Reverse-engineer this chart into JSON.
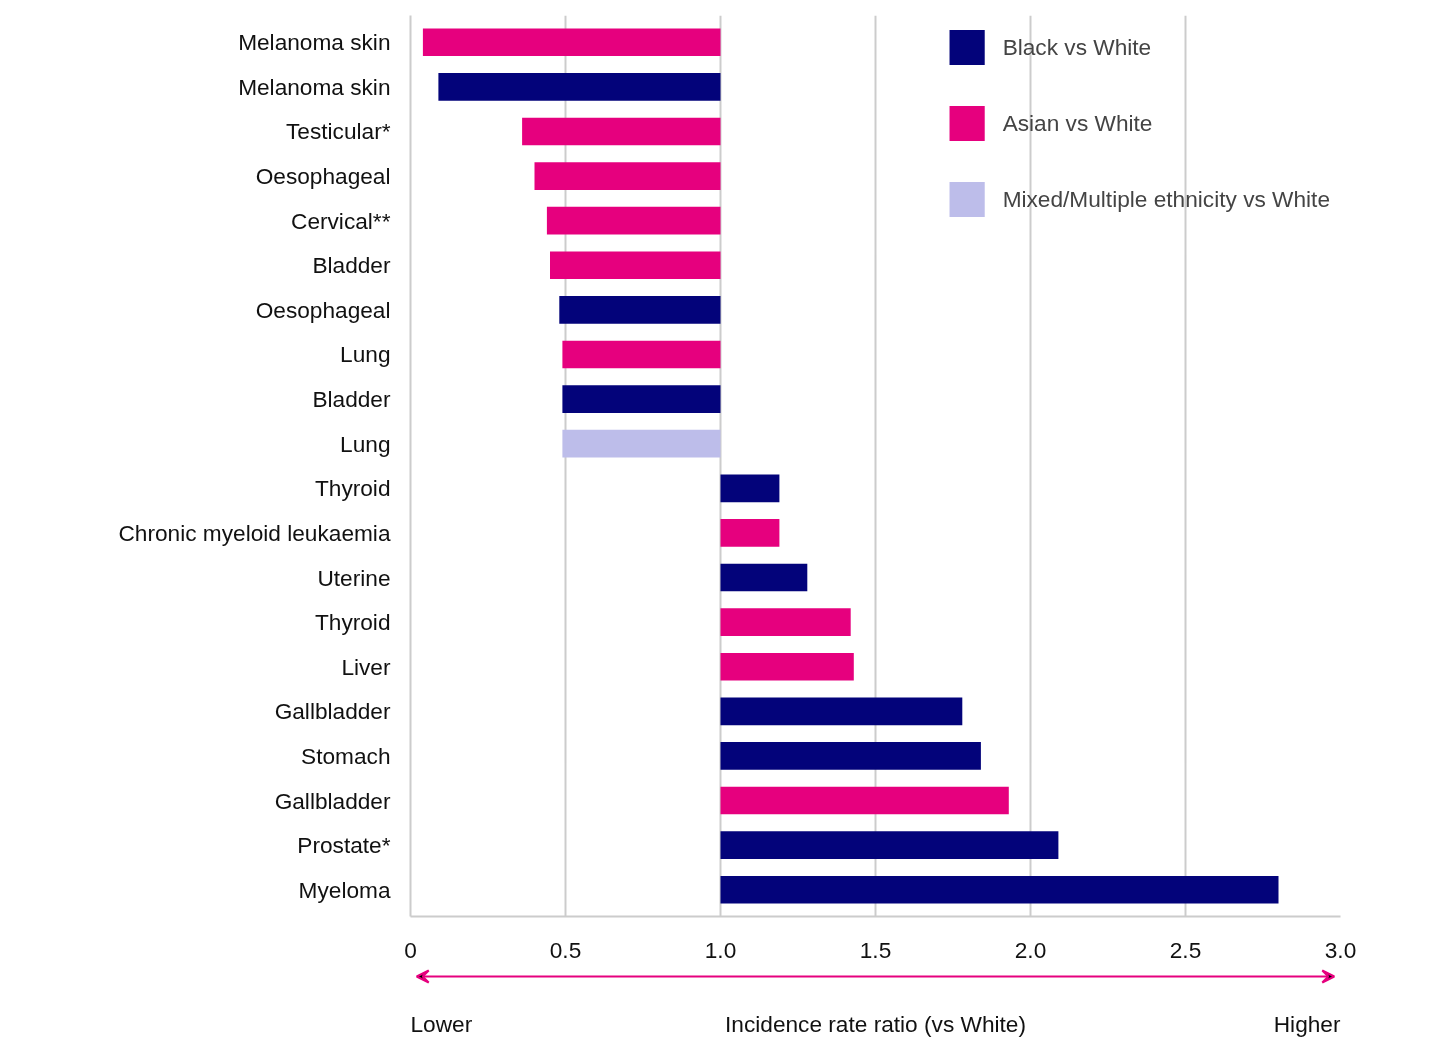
{
  "chart_data": {
    "type": "bar",
    "orientation": "horizontal",
    "xlabel": "Incidence rate ratio (vs White)",
    "categories": [
      "Melanoma skin",
      "Melanoma skin",
      "Testicular*",
      "Oesophageal",
      "Cervical**",
      "Bladder",
      "Oesophageal",
      "Lung",
      "Bladder",
      "Lung",
      "Thyroid",
      "Chronic myeloid leukaemia",
      "Uterine",
      "Thyroid",
      "Liver",
      "Gallbladder",
      "Stomach",
      "Gallbladder",
      "Prostate*",
      "Myeloma"
    ],
    "series": [
      {
        "name": "Black vs White",
        "color": "#03037a",
        "base": [
          null,
          1.0,
          null,
          null,
          null,
          null,
          1.0,
          null,
          1.0,
          null,
          1.0,
          null,
          1.0,
          null,
          null,
          1.0,
          1.0,
          null,
          1.0,
          1.0
        ],
        "values": [
          null,
          -0.91,
          null,
          null,
          null,
          null,
          -0.52,
          null,
          -0.51,
          null,
          0.19,
          null,
          0.28,
          null,
          null,
          0.78,
          0.84,
          null,
          1.09,
          1.8
        ]
      },
      {
        "name": "Asian vs White",
        "color": "#e6007e",
        "base": [
          1.0,
          null,
          1.0,
          1.0,
          1.0,
          1.0,
          null,
          1.0,
          null,
          null,
          null,
          1.0,
          null,
          1.0,
          1.0,
          null,
          null,
          1.0,
          null,
          null
        ],
        "values": [
          -0.96,
          null,
          -0.64,
          -0.6,
          -0.56,
          -0.55,
          null,
          -0.51,
          null,
          null,
          null,
          0.19,
          null,
          0.42,
          0.43,
          null,
          null,
          0.93,
          null,
          null
        ]
      },
      {
        "name": "Mixed/Multiple ethnicity vs White",
        "color": "#bdbdea",
        "base": [
          null,
          null,
          null,
          null,
          null,
          null,
          null,
          null,
          null,
          1.0,
          null,
          null,
          null,
          null,
          null,
          null,
          null,
          null,
          null,
          null
        ],
        "values": [
          null,
          null,
          null,
          null,
          null,
          null,
          null,
          null,
          null,
          -0.51,
          null,
          null,
          null,
          null,
          null,
          null,
          null,
          null,
          null,
          null
        ]
      }
    ],
    "xlim": [
      0,
      3.0
    ],
    "xticks": [
      0,
      0.5,
      {
        "value": 1.0,
        "label": "1.0"
      },
      1.5,
      {
        "value": 2.0,
        "label": "2.0"
      },
      2.5,
      {
        "value": 3.0,
        "label": "3.0"
      }
    ],
    "grid": "x",
    "legend": "top right",
    "annotations": [
      "Lower",
      "Higher"
    ]
  }
}
